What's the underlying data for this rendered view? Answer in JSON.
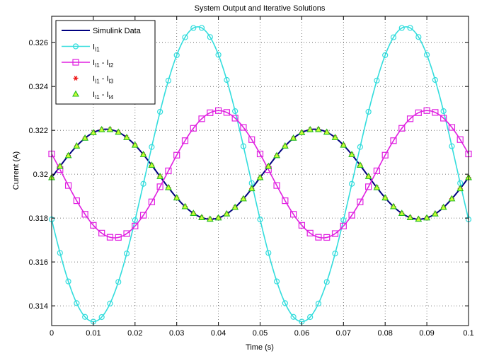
{
  "chart_data": {
    "type": "line",
    "title": "System Output and Iterative Solutions",
    "xlabel": "Time (s)",
    "ylabel": "Current (A)",
    "xlim": [
      0,
      0.1
    ],
    "ylim": [
      0.3131,
      0.3272
    ],
    "grid": true,
    "x_ticks": [
      0,
      0.01,
      0.02,
      0.03,
      0.04,
      0.05,
      0.06,
      0.07,
      0.08,
      0.09,
      0.1
    ],
    "x_tick_labels": [
      "0",
      "0.01",
      "0.02",
      "0.03",
      "0.04",
      "0.05",
      "0.06",
      "0.07",
      "0.08",
      "0.09",
      "0.1"
    ],
    "y_ticks": [
      0.314,
      0.316,
      0.318,
      0.32,
      0.322,
      0.324,
      0.326
    ],
    "y_tick_labels": [
      "0.314",
      "0.316",
      "0.318",
      "0.32",
      "0.322",
      "0.324",
      "0.326"
    ],
    "legend_position": "top-left",
    "series": [
      {
        "name": "Simulink Data",
        "legend_label": "Simulink Data",
        "color": "#000080",
        "marker": "none",
        "model": {
          "offset": 0.32,
          "amplitude": 0.00205,
          "period": 0.05,
          "phase_zero_time": 0.0006
        },
        "marker_step": 0.002
      },
      {
        "name": "I1",
        "legend_main": "I",
        "legend_sub": "I1",
        "color": "#33dddd",
        "marker": "circle",
        "model": {
          "offset": 0.32,
          "amplitude": 0.00672,
          "period": 0.05,
          "phase_zero_time": 0.02252
        },
        "marker_step": 0.002
      },
      {
        "name": "I1 - I2",
        "legend_parts": [
          "I",
          "I1",
          " - I",
          "I2"
        ],
        "color": "#e020e0",
        "marker": "square",
        "model": {
          "offset": 0.32,
          "amplitude": 0.0029,
          "period": 0.05,
          "phase_zero_time": 0.02758
        },
        "marker_step": 0.002
      },
      {
        "name": "I1 - I3",
        "legend_parts": [
          "I",
          "I1",
          " - I",
          "I3"
        ],
        "color": "#ee1111",
        "marker": "star",
        "model": {
          "offset": 0.32,
          "amplitude": 0.00205,
          "period": 0.05,
          "phase_zero_time": 0.0006
        },
        "marker_step": 0.002
      },
      {
        "name": "I1 - I4",
        "legend_parts": [
          "I",
          "I1",
          " - I",
          "I4"
        ],
        "color": "#22bb22",
        "fill": "#ccff33",
        "marker": "triangle",
        "model": {
          "offset": 0.32,
          "amplitude": 0.00205,
          "period": 0.05,
          "phase_zero_time": 0.0006
        },
        "marker_step": 0.002
      }
    ]
  }
}
